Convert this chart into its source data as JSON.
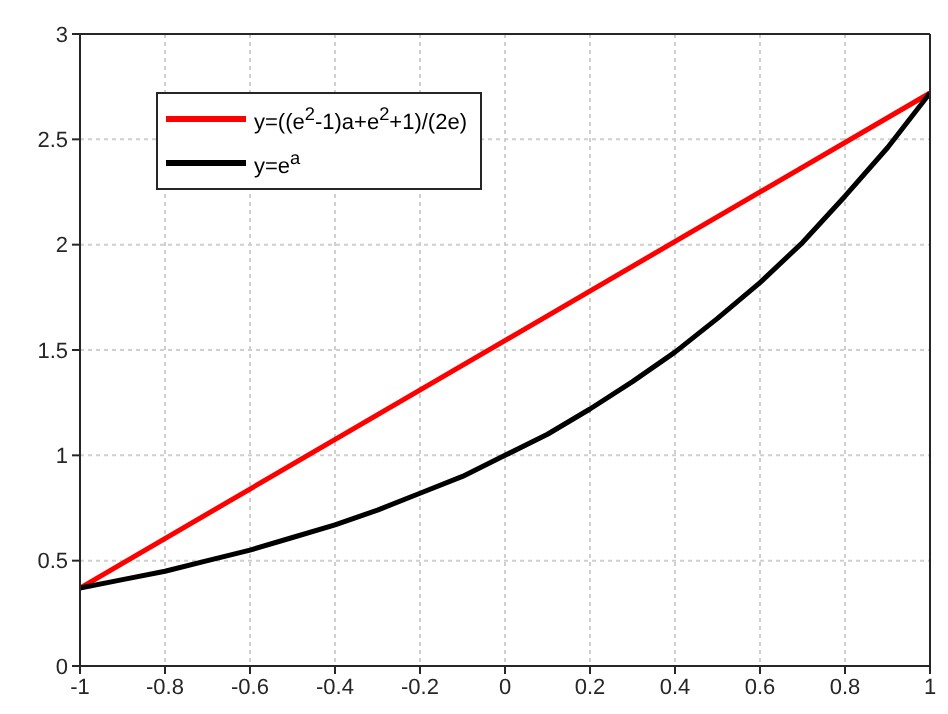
{
  "chart_data": {
    "type": "line",
    "xlim": [
      -1,
      1
    ],
    "xticks": [
      -1,
      -0.8,
      -0.6,
      -0.4,
      -0.2,
      0,
      0.2,
      0.4,
      0.6,
      0.8,
      1
    ],
    "ylim": [
      0,
      3
    ],
    "yticks": [
      0,
      0.5,
      1,
      1.5,
      2,
      2.5,
      3
    ],
    "grid": true,
    "legend": "top left",
    "marker": "none",
    "line_style": "solid",
    "series": [
      {
        "name": "y=((e$^{2}$-1)a+e$^{2}$+1)/(2e)",
        "color": "#ff0000",
        "x": [
          -1,
          1
        ],
        "values": [
          0.37,
          2.72
        ]
      },
      {
        "name": "y=e$^{a}$",
        "color": "#000000",
        "x": [
          -1,
          -0.9,
          -0.8,
          -0.7,
          -0.6,
          -0.5,
          -0.4,
          -0.3,
          -0.2,
          -0.1,
          0,
          0.1,
          0.2,
          0.3,
          0.4,
          0.5,
          0.6,
          0.7,
          0.8,
          0.9,
          1
        ],
        "values": [
          0.37,
          0.41,
          0.45,
          0.5,
          0.55,
          0.61,
          0.67,
          0.74,
          0.82,
          0.9,
          1,
          1.1,
          1.22,
          1.35,
          1.49,
          1.65,
          1.82,
          2.01,
          2.23,
          2.46,
          2.72
        ]
      }
    ]
  }
}
